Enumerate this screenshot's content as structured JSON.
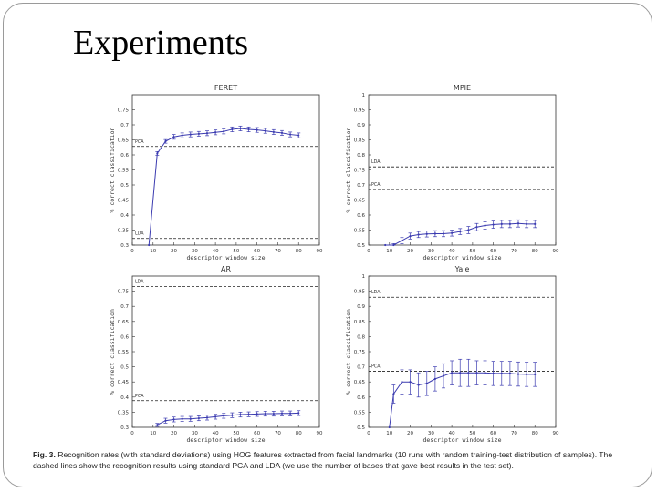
{
  "slide": {
    "title": "Experiments"
  },
  "caption": {
    "label": "Fig. 3.",
    "text": "Recognition rates (with standard deviations) using HOG features extracted from facial landmarks (10 runs with random training-test distribution of samples). The dashed lines show the recognition results using standard PCA and LDA (we use the number of bases that gave best results in the test set)."
  },
  "style": {
    "series_color": "#3b3bb0",
    "axis_color": "#333333",
    "dash_color": "#222222"
  },
  "chart_data": [
    {
      "id": "feret",
      "type": "line",
      "title": "FERET",
      "xlabel": "descriptor window size",
      "ylabel": "% correct classification",
      "xlim": [
        0,
        90
      ],
      "ylim": [
        0.3,
        0.8
      ],
      "xticks": [
        0,
        10,
        20,
        30,
        40,
        50,
        60,
        70,
        80,
        90
      ],
      "xtick_labels": [
        "0",
        "10",
        "20",
        "30",
        "40",
        "50",
        "60",
        "70",
        "80",
        "90"
      ],
      "yticks": [
        0.3,
        0.35,
        0.4,
        0.45,
        0.5,
        0.55,
        0.6,
        0.65,
        0.7,
        0.75
      ],
      "ytick_labels": [
        "0.3",
        "0.35",
        "0.4",
        "0.45",
        "0.5",
        "0.55",
        "0.6",
        "0.65",
        "0.7",
        "0.75"
      ],
      "x": [
        8,
        12,
        16,
        20,
        24,
        28,
        32,
        36,
        40,
        44,
        48,
        52,
        56,
        60,
        64,
        68,
        72,
        76,
        80
      ],
      "values": [
        0.3,
        0.605,
        0.645,
        0.66,
        0.665,
        0.668,
        0.67,
        0.672,
        0.675,
        0.678,
        0.685,
        0.688,
        0.685,
        0.683,
        0.68,
        0.676,
        0.673,
        0.668,
        0.665
      ],
      "errors": [
        0,
        0.006,
        0.006,
        0.008,
        0.008,
        0.008,
        0.008,
        0.008,
        0.008,
        0.008,
        0.008,
        0.008,
        0.008,
        0.008,
        0.008,
        0.008,
        0.008,
        0.008,
        0.008
      ],
      "baselines": [
        {
          "label": "PCA",
          "value": 0.628
        },
        {
          "label": "LDA",
          "value": 0.322
        }
      ]
    },
    {
      "id": "mpie",
      "type": "line",
      "title": "MPIE",
      "xlabel": "descriptor window size",
      "ylabel": "% correct classification",
      "xlim": [
        0,
        90
      ],
      "ylim": [
        0.5,
        1.0
      ],
      "xticks": [
        0,
        10,
        20,
        30,
        40,
        50,
        60,
        70,
        80,
        90
      ],
      "xtick_labels": [
        "0",
        "10",
        "20",
        "30",
        "40",
        "50",
        "60",
        "70",
        "80",
        "90"
      ],
      "yticks": [
        0.5,
        0.55,
        0.6,
        0.65,
        0.7,
        0.75,
        0.8,
        0.85,
        0.9,
        0.95,
        1.0
      ],
      "ytick_labels": [
        "0.5",
        "0.55",
        "0.6",
        "0.65",
        "0.7",
        "0.75",
        "0.8",
        "0.85",
        "0.9",
        "0.95",
        "1"
      ],
      "x": [
        8,
        12,
        16,
        20,
        24,
        28,
        32,
        36,
        40,
        44,
        48,
        52,
        56,
        60,
        64,
        68,
        72,
        76,
        80
      ],
      "values": [
        0.5,
        0.5,
        0.515,
        0.53,
        0.535,
        0.537,
        0.538,
        0.538,
        0.54,
        0.545,
        0.55,
        0.56,
        0.565,
        0.568,
        0.57,
        0.57,
        0.572,
        0.57,
        0.57
      ],
      "errors": [
        0,
        0.005,
        0.01,
        0.01,
        0.01,
        0.01,
        0.01,
        0.01,
        0.01,
        0.01,
        0.012,
        0.012,
        0.012,
        0.012,
        0.012,
        0.012,
        0.012,
        0.012,
        0.012
      ],
      "baselines": [
        {
          "label": "LDA",
          "value": 0.76
        },
        {
          "label": "PCA",
          "value": 0.685
        }
      ]
    },
    {
      "id": "ar",
      "type": "line",
      "title": "AR",
      "xlabel": "descriptor window size",
      "ylabel": "% correct classification",
      "xlim": [
        0,
        90
      ],
      "ylim": [
        0.3,
        0.8
      ],
      "xticks": [
        0,
        10,
        20,
        30,
        40,
        50,
        60,
        70,
        80,
        90
      ],
      "xtick_labels": [
        "0",
        "10",
        "20",
        "30",
        "40",
        "50",
        "60",
        "70",
        "80",
        "90"
      ],
      "yticks": [
        0.3,
        0.35,
        0.4,
        0.45,
        0.5,
        0.55,
        0.6,
        0.65,
        0.7,
        0.75
      ],
      "ytick_labels": [
        "0.3",
        "0.35",
        "0.4",
        "0.45",
        "0.5",
        "0.55",
        "0.6",
        "0.65",
        "0.7",
        "0.75"
      ],
      "x": [
        12,
        16,
        20,
        24,
        28,
        32,
        36,
        40,
        44,
        48,
        52,
        56,
        60,
        64,
        68,
        72,
        76,
        80
      ],
      "values": [
        0.308,
        0.322,
        0.326,
        0.328,
        0.328,
        0.33,
        0.332,
        0.335,
        0.338,
        0.34,
        0.342,
        0.343,
        0.344,
        0.345,
        0.345,
        0.346,
        0.346,
        0.347
      ],
      "errors": [
        0.005,
        0.008,
        0.008,
        0.008,
        0.008,
        0.008,
        0.008,
        0.008,
        0.008,
        0.008,
        0.008,
        0.008,
        0.008,
        0.008,
        0.008,
        0.008,
        0.008,
        0.008
      ],
      "baselines": [
        {
          "label": "LDA",
          "value": 0.765
        },
        {
          "label": "PCA",
          "value": 0.388
        }
      ]
    },
    {
      "id": "yale",
      "type": "line",
      "title": "Yale",
      "xlabel": "descriptor window size",
      "ylabel": "% correct classification",
      "xlim": [
        0,
        90
      ],
      "ylim": [
        0.5,
        1.0
      ],
      "xticks": [
        0,
        10,
        20,
        30,
        40,
        50,
        60,
        70,
        80,
        90
      ],
      "xtick_labels": [
        "0",
        "10",
        "20",
        "30",
        "40",
        "50",
        "60",
        "70",
        "80",
        "90"
      ],
      "yticks": [
        0.5,
        0.55,
        0.6,
        0.65,
        0.7,
        0.75,
        0.8,
        0.85,
        0.9,
        0.95,
        1.0
      ],
      "ytick_labels": [
        "0.5",
        "0.55",
        "0.6",
        "0.65",
        "0.7",
        "0.75",
        "0.8",
        "0.85",
        "0.9",
        "0.95",
        "1"
      ],
      "x": [
        10,
        12,
        16,
        20,
        24,
        28,
        32,
        36,
        40,
        44,
        48,
        52,
        56,
        60,
        64,
        68,
        72,
        76,
        80
      ],
      "values": [
        0.5,
        0.61,
        0.65,
        0.65,
        0.64,
        0.645,
        0.66,
        0.67,
        0.68,
        0.68,
        0.68,
        0.68,
        0.68,
        0.678,
        0.678,
        0.678,
        0.676,
        0.675,
        0.675
      ],
      "errors": [
        0,
        0.03,
        0.04,
        0.04,
        0.04,
        0.04,
        0.04,
        0.04,
        0.04,
        0.045,
        0.045,
        0.04,
        0.04,
        0.04,
        0.04,
        0.04,
        0.04,
        0.04,
        0.04
      ],
      "baselines": [
        {
          "label": "LDA",
          "value": 0.93
        },
        {
          "label": "PCA",
          "value": 0.685
        }
      ]
    }
  ]
}
